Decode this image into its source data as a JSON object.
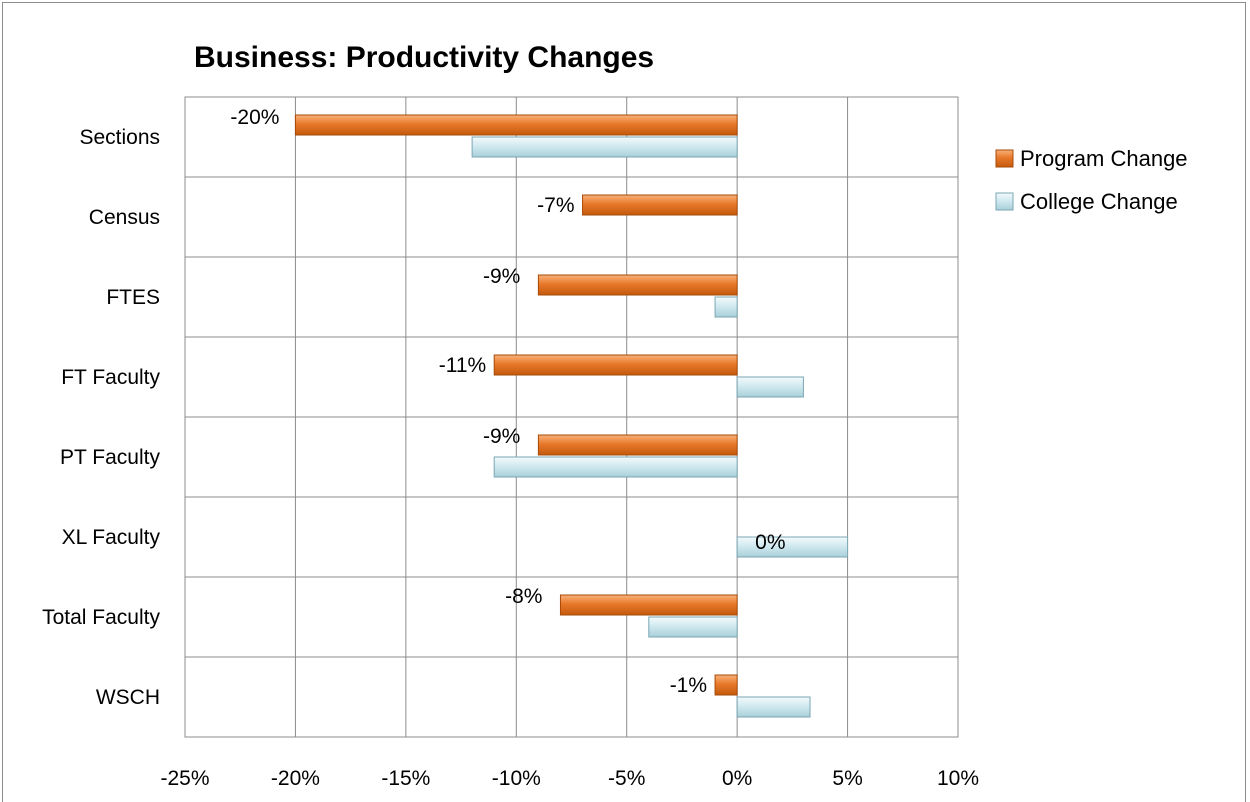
{
  "chart_data": {
    "type": "bar",
    "orientation": "horizontal",
    "title": "Business: Productivity Changes",
    "categories": [
      "Sections",
      "Census",
      "FTES",
      "FT Faculty",
      "PT Faculty",
      "XL Faculty",
      "Total Faculty",
      "WSCH"
    ],
    "series": [
      {
        "name": "Program Change",
        "color": "#e2711d",
        "values": [
          -20,
          -7,
          -9,
          -11,
          -9,
          0,
          -8,
          -1
        ],
        "labels": [
          "-20%",
          "-7%",
          "-9%",
          "-11%",
          "-9%",
          "0%",
          "-8%",
          "-1%"
        ]
      },
      {
        "name": "College Change",
        "color": "#cde7ee",
        "values": [
          -12,
          0,
          -1,
          3,
          -11,
          5,
          -4,
          3.3
        ]
      }
    ],
    "xlim": [
      -25,
      10
    ],
    "xticks": [
      "-25%",
      "-20%",
      "-15%",
      "-10%",
      "-5%",
      "0%",
      "5%",
      "10%"
    ],
    "grid": true,
    "legend_position": "right"
  }
}
